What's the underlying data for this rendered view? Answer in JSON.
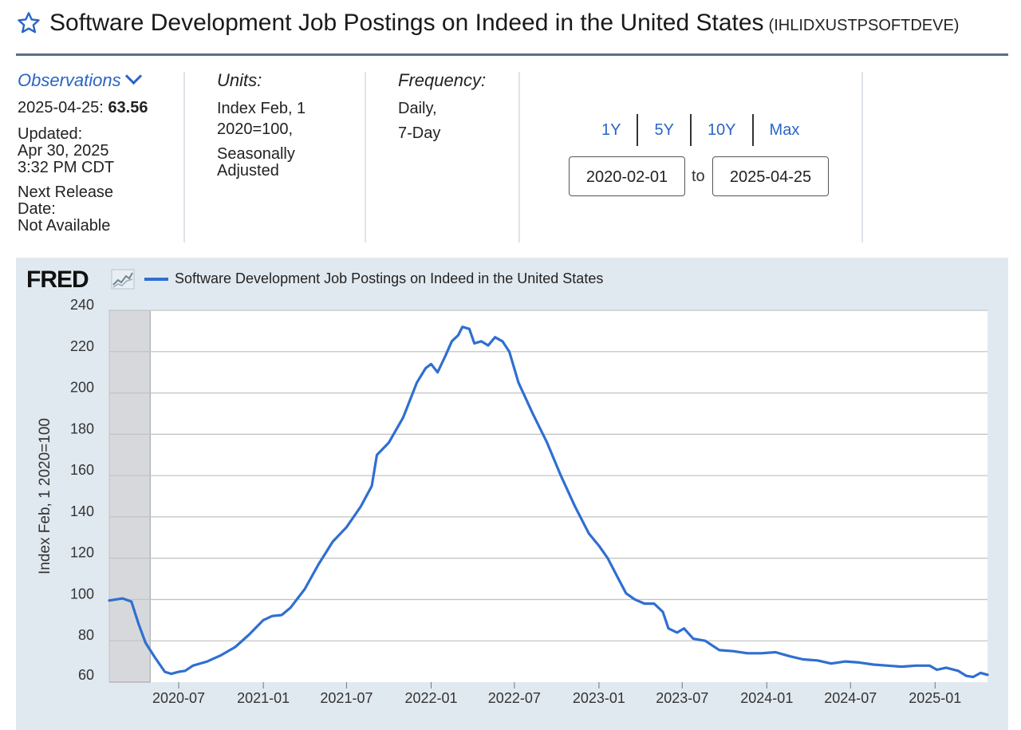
{
  "header": {
    "title": "Software Development Job Postings on Indeed in the United States",
    "series_id": "(IHLIDXUSTPSOFTDEVE)"
  },
  "observations": {
    "label": "Observations",
    "date": "2025-04-25:",
    "value": "63.56",
    "updated_label": "Updated:",
    "updated_date": "Apr 30, 2025",
    "updated_time": "3:32 PM CDT",
    "next_release_label1": "Next Release",
    "next_release_label2": "Date:",
    "next_release_value": "Not Available"
  },
  "units": {
    "label": "Units:",
    "line1": "Index Feb, 1",
    "line2": "2020=100,",
    "line3": "Seasonally",
    "line4": "Adjusted"
  },
  "frequency": {
    "label": "Frequency:",
    "line1": "Daily,",
    "line2": "7-Day"
  },
  "range_buttons": [
    "1Y",
    "5Y",
    "10Y",
    "Max"
  ],
  "date_range": {
    "start": "2020-02-01",
    "to": "to",
    "end": "2025-04-25"
  },
  "fred_logo": "FRED",
  "colors": {
    "accent": "#2a65c4",
    "series": "#2f6fd0",
    "recession": "#d6d8dc",
    "panel": "#e1e9f0"
  },
  "chart_data": {
    "type": "line",
    "title": "",
    "xlabel": "",
    "ylabel": "Index Feb, 1 2020=100",
    "ylim": [
      60,
      240
    ],
    "xlim": [
      "2020-02-01",
      "2025-04-25"
    ],
    "yticks": [
      60,
      80,
      100,
      120,
      140,
      160,
      180,
      200,
      220,
      240
    ],
    "xticks": [
      "2020-07",
      "2021-01",
      "2021-07",
      "2022-01",
      "2022-07",
      "2023-01",
      "2023-07",
      "2024-01",
      "2024-07",
      "2025-01"
    ],
    "grid": true,
    "legend": "top-left",
    "recession_shading": {
      "start": "2020-02-01",
      "end": "2020-04-30"
    },
    "series": [
      {
        "name": "Software Development Job Postings on Indeed in the United States",
        "points": [
          [
            "2020-02-01",
            99.5
          ],
          [
            "2020-03-01",
            100.5
          ],
          [
            "2020-03-20",
            99
          ],
          [
            "2020-04-05",
            88
          ],
          [
            "2020-04-20",
            79
          ],
          [
            "2020-05-10",
            72
          ],
          [
            "2020-06-01",
            65
          ],
          [
            "2020-06-15",
            64
          ],
          [
            "2020-07-01",
            65
          ],
          [
            "2020-07-15",
            65.5
          ],
          [
            "2020-08-01",
            68
          ],
          [
            "2020-09-01",
            70
          ],
          [
            "2020-10-01",
            73
          ],
          [
            "2020-11-01",
            77
          ],
          [
            "2020-12-01",
            83
          ],
          [
            "2021-01-01",
            90
          ],
          [
            "2021-01-20",
            92
          ],
          [
            "2021-02-10",
            92.5
          ],
          [
            "2021-03-01",
            96
          ],
          [
            "2021-04-01",
            105
          ],
          [
            "2021-05-01",
            117
          ],
          [
            "2021-06-01",
            128
          ],
          [
            "2021-07-01",
            135
          ],
          [
            "2021-08-01",
            145
          ],
          [
            "2021-08-25",
            155
          ],
          [
            "2021-09-05",
            170
          ],
          [
            "2021-10-01",
            176
          ],
          [
            "2021-11-01",
            188
          ],
          [
            "2021-12-01",
            205
          ],
          [
            "2021-12-20",
            212
          ],
          [
            "2022-01-01",
            214
          ],
          [
            "2022-01-15",
            210
          ],
          [
            "2022-02-01",
            218
          ],
          [
            "2022-02-15",
            225
          ],
          [
            "2022-03-01",
            228
          ],
          [
            "2022-03-10",
            232
          ],
          [
            "2022-03-25",
            231
          ],
          [
            "2022-04-05",
            224
          ],
          [
            "2022-04-20",
            225
          ],
          [
            "2022-05-05",
            223
          ],
          [
            "2022-05-20",
            227
          ],
          [
            "2022-06-05",
            225
          ],
          [
            "2022-06-20",
            220
          ],
          [
            "2022-07-10",
            205
          ],
          [
            "2022-08-10",
            190
          ],
          [
            "2022-09-10",
            176
          ],
          [
            "2022-10-10",
            160
          ],
          [
            "2022-11-10",
            145
          ],
          [
            "2022-12-10",
            132
          ],
          [
            "2023-01-01",
            126
          ],
          [
            "2023-01-20",
            120
          ],
          [
            "2023-02-10",
            111
          ],
          [
            "2023-03-01",
            103
          ],
          [
            "2023-03-20",
            100
          ],
          [
            "2023-04-10",
            98
          ],
          [
            "2023-05-01",
            98
          ],
          [
            "2023-05-20",
            94
          ],
          [
            "2023-06-01",
            86
          ],
          [
            "2023-06-20",
            84
          ],
          [
            "2023-07-05",
            86
          ],
          [
            "2023-07-25",
            81
          ],
          [
            "2023-08-20",
            80
          ],
          [
            "2023-09-20",
            75.5
          ],
          [
            "2023-10-20",
            75
          ],
          [
            "2023-11-20",
            74
          ],
          [
            "2023-12-20",
            74
          ],
          [
            "2024-01-20",
            74.5
          ],
          [
            "2024-02-20",
            72.5
          ],
          [
            "2024-03-20",
            71
          ],
          [
            "2024-04-20",
            70.5
          ],
          [
            "2024-05-20",
            69
          ],
          [
            "2024-06-20",
            70
          ],
          [
            "2024-07-20",
            69.5
          ],
          [
            "2024-08-20",
            68.5
          ],
          [
            "2024-09-20",
            68
          ],
          [
            "2024-10-20",
            67.5
          ],
          [
            "2024-11-20",
            68
          ],
          [
            "2024-12-20",
            68
          ],
          [
            "2025-01-05",
            66
          ],
          [
            "2025-01-25",
            67
          ],
          [
            "2025-02-20",
            65.5
          ],
          [
            "2025-03-10",
            63
          ],
          [
            "2025-03-25",
            62.5
          ],
          [
            "2025-04-10",
            64.5
          ],
          [
            "2025-04-25",
            63.56
          ]
        ]
      }
    ]
  }
}
